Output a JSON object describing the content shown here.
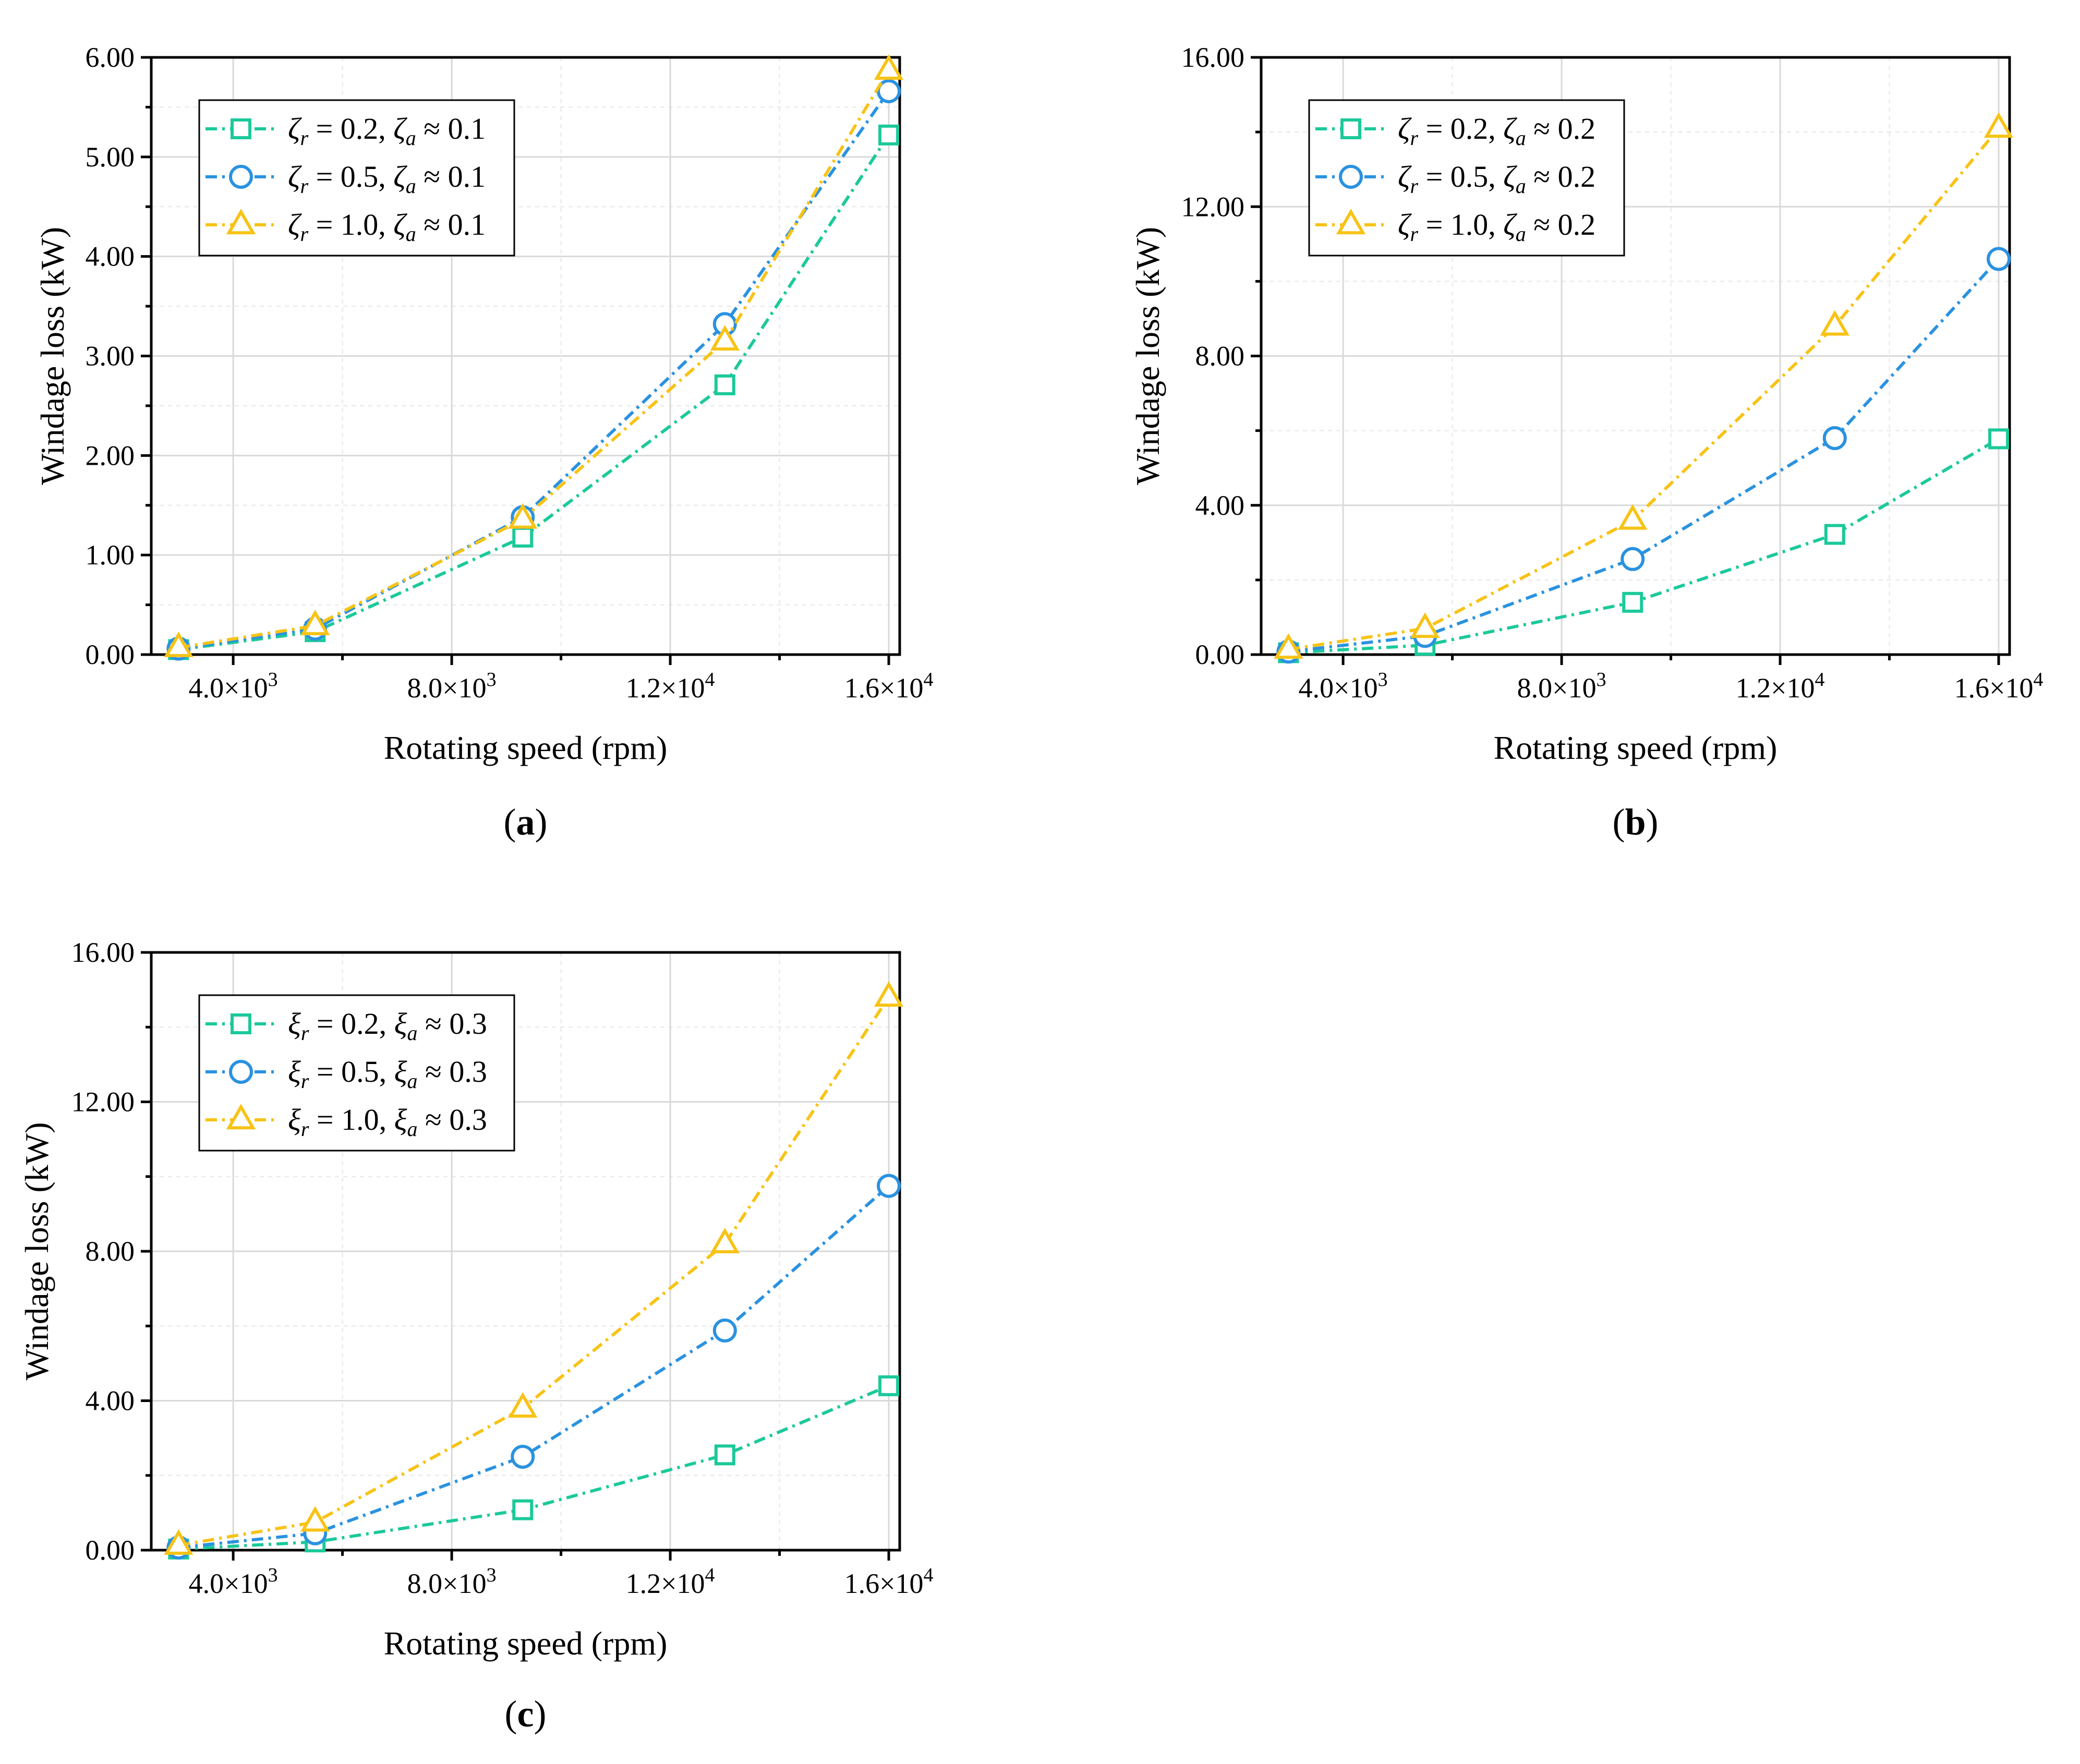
{
  "chart_data": [
    {
      "type": "line",
      "panel": "(a)",
      "panel_letter": "a",
      "xlabel": "Rotating speed (rpm)",
      "ylabel": "Windage loss (kW)",
      "xlim": [
        2500,
        16200
      ],
      "ylim": [
        0,
        6
      ],
      "xticks": [
        4000,
        8000,
        12000,
        16000
      ],
      "xtick_labels": [
        {
          "mant": "4.0×10",
          "exp": "3"
        },
        {
          "mant": "8.0×10",
          "exp": "3"
        },
        {
          "mant": "1.2×10",
          "exp": "4"
        },
        {
          "mant": "1.6×10",
          "exp": "4"
        }
      ],
      "yticks": [
        0,
        1,
        2,
        3,
        4,
        5,
        6
      ],
      "ytick_labels": [
        "0.00",
        "1.00",
        "2.00",
        "3.00",
        "4.00",
        "5.00",
        "6.00"
      ],
      "grid": true,
      "legend": "top-left",
      "x": [
        3000,
        5500,
        9300,
        13000,
        16000
      ],
      "series": [
        {
          "name": "ζr = 0.2, ζa ≈ 0.1",
          "sym": "ζ",
          "r": "0.2",
          "a": "0.1",
          "marker": "square",
          "color": "#1bc99a",
          "values": [
            0.05,
            0.23,
            1.18,
            2.71,
            5.22
          ]
        },
        {
          "name": "ζr = 0.5, ζa ≈ 0.1",
          "sym": "ζ",
          "r": "0.5",
          "a": "0.1",
          "marker": "circle",
          "color": "#2a92e0",
          "values": [
            0.06,
            0.26,
            1.38,
            3.32,
            5.66
          ]
        },
        {
          "name": "ζr = 1.0, ζa ≈ 0.1",
          "sym": "ζ",
          "r": "1.0",
          "a": "0.1",
          "marker": "triangle",
          "color": "#f7c316",
          "values": [
            0.07,
            0.29,
            1.36,
            3.15,
            5.87
          ]
        }
      ]
    },
    {
      "type": "line",
      "panel": "(b)",
      "panel_letter": "b",
      "xlabel": "Rotating speed (rpm)",
      "ylabel": "Windage loss (kW)",
      "xlim": [
        2500,
        16200
      ],
      "ylim": [
        0,
        16
      ],
      "xticks": [
        4000,
        8000,
        12000,
        16000
      ],
      "xtick_labels": [
        {
          "mant": "4.0×10",
          "exp": "3"
        },
        {
          "mant": "8.0×10",
          "exp": "3"
        },
        {
          "mant": "1.2×10",
          "exp": "4"
        },
        {
          "mant": "1.6×10",
          "exp": "4"
        }
      ],
      "yticks": [
        0,
        4,
        8,
        12,
        16
      ],
      "ytick_labels": [
        "0.00",
        "4.00",
        "8.00",
        "12.00",
        "16.00"
      ],
      "grid": true,
      "legend": "top-left",
      "x": [
        3000,
        5500,
        9300,
        13000,
        16000
      ],
      "series": [
        {
          "name": "ζr = 0.2, ζa ≈ 0.2",
          "sym": "ζ",
          "r": "0.2",
          "a": "0.2",
          "marker": "square",
          "color": "#1bc99a",
          "values": [
            0.05,
            0.25,
            1.4,
            3.22,
            5.78
          ]
        },
        {
          "name": "ζr = 0.5, ζa ≈ 0.2",
          "sym": "ζ",
          "r": "0.5",
          "a": "0.2",
          "marker": "circle",
          "color": "#2a92e0",
          "values": [
            0.08,
            0.5,
            2.56,
            5.8,
            10.6
          ]
        },
        {
          "name": "ζr = 1.0, ζa ≈ 0.2",
          "sym": "ζ",
          "r": "1.0",
          "a": "0.2",
          "marker": "triangle",
          "color": "#f7c316",
          "values": [
            0.14,
            0.7,
            3.6,
            8.8,
            14.1
          ]
        }
      ]
    },
    {
      "type": "line",
      "panel": "(c)",
      "panel_letter": "c",
      "xlabel": "Rotating speed (rpm)",
      "ylabel": "Windage loss (kW)",
      "xlim": [
        2500,
        16200
      ],
      "ylim": [
        0,
        16
      ],
      "xticks": [
        4000,
        8000,
        12000,
        16000
      ],
      "xtick_labels": [
        {
          "mant": "4.0×10",
          "exp": "3"
        },
        {
          "mant": "8.0×10",
          "exp": "3"
        },
        {
          "mant": "1.2×10",
          "exp": "4"
        },
        {
          "mant": "1.6×10",
          "exp": "4"
        }
      ],
      "yticks": [
        0,
        4,
        8,
        12,
        16
      ],
      "ytick_labels": [
        "0.00",
        "4.00",
        "8.00",
        "12.00",
        "16.00"
      ],
      "grid": true,
      "legend": "top-left",
      "x": [
        3000,
        5500,
        9300,
        13000,
        16000
      ],
      "series": [
        {
          "name": "ξr = 0.2, ξa ≈ 0.3",
          "sym": "ξ",
          "r": "0.2",
          "a": "0.3",
          "marker": "square",
          "color": "#1bc99a",
          "values": [
            0.03,
            0.22,
            1.08,
            2.55,
            4.4
          ]
        },
        {
          "name": "ξr = 0.5, ξa ≈ 0.3",
          "sym": "ξ",
          "r": "0.5",
          "a": "0.3",
          "marker": "circle",
          "color": "#2a92e0",
          "values": [
            0.07,
            0.45,
            2.5,
            5.88,
            9.75
          ]
        },
        {
          "name": "ξr = 1.0, ξa ≈ 0.3",
          "sym": "ξ",
          "r": "1.0",
          "a": "0.3",
          "marker": "triangle",
          "color": "#f7c316",
          "values": [
            0.13,
            0.75,
            3.8,
            8.2,
            14.8
          ]
        }
      ]
    }
  ]
}
